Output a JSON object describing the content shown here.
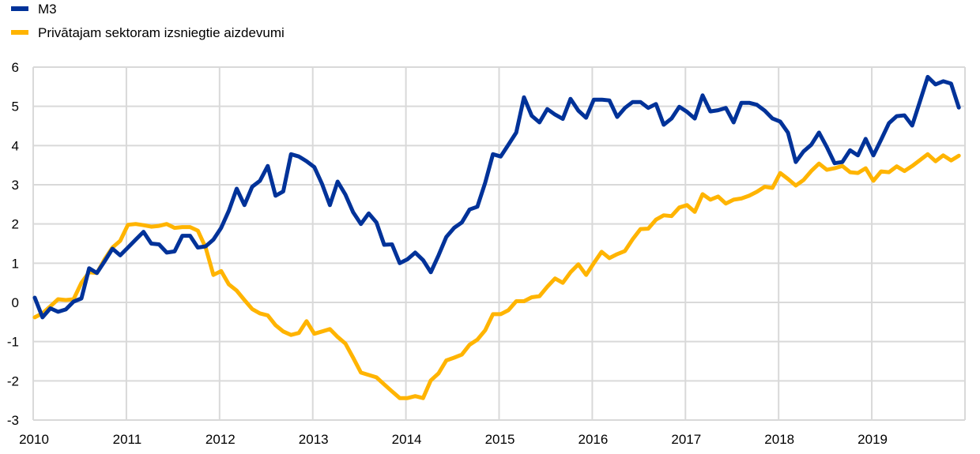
{
  "chart_data": {
    "type": "line",
    "title": "",
    "xlabel": "",
    "ylabel": "",
    "ylim": [
      -3,
      6
    ],
    "yticks": [
      "6",
      "5",
      "4",
      "3",
      "2",
      "1",
      "0",
      "-1",
      "-2",
      "-3"
    ],
    "xticks": [
      "2010",
      "2011",
      "2012",
      "2013",
      "2014",
      "2015",
      "2016",
      "2017",
      "2018",
      "2019"
    ],
    "x_start": "2010-01",
    "x_frequency": "monthly",
    "grid": true,
    "legend_position": "top-left",
    "series": [
      {
        "name": "M3",
        "color": "#003299",
        "values": [
          0.12,
          -0.38,
          -0.15,
          -0.24,
          -0.18,
          0.02,
          0.1,
          0.87,
          0.75,
          1.05,
          1.37,
          1.2,
          1.4,
          1.6,
          1.8,
          1.5,
          1.48,
          1.27,
          1.3,
          1.7,
          1.7,
          1.4,
          1.43,
          1.6,
          1.9,
          2.34,
          2.9,
          2.48,
          2.95,
          3.1,
          3.48,
          2.72,
          2.83,
          3.78,
          3.72,
          3.6,
          3.45,
          3.02,
          2.48,
          3.08,
          2.75,
          2.3,
          2.0,
          2.27,
          2.04,
          1.47,
          1.48,
          1.0,
          1.1,
          1.27,
          1.08,
          0.77,
          1.2,
          1.67,
          1.9,
          2.04,
          2.37,
          2.44,
          3.05,
          3.78,
          3.72,
          4.02,
          4.33,
          5.23,
          4.76,
          4.59,
          4.93,
          4.79,
          4.68,
          5.19,
          4.89,
          4.71,
          5.17,
          5.17,
          5.15,
          4.73,
          4.96,
          5.11,
          5.11,
          4.96,
          5.06,
          4.53,
          4.69,
          4.99,
          4.86,
          4.69,
          5.28,
          4.87,
          4.9,
          4.96,
          4.59,
          5.09,
          5.09,
          5.04,
          4.89,
          4.69,
          4.61,
          4.33,
          3.58,
          3.85,
          4.02,
          4.33,
          3.96,
          3.55,
          3.58,
          3.88,
          3.75,
          4.17,
          3.75,
          4.15,
          4.57,
          4.75,
          4.77,
          4.51,
          5.13,
          5.75,
          5.56,
          5.64,
          5.58,
          4.97
        ]
      },
      {
        "name": "Privātajam sektoram izsniegtie aizdevumi",
        "color": "#FFB400",
        "values": [
          -0.38,
          -0.28,
          -0.1,
          0.08,
          0.06,
          0.08,
          0.5,
          0.77,
          0.75,
          1.1,
          1.4,
          1.57,
          1.98,
          2.0,
          1.97,
          1.93,
          1.95,
          2.0,
          1.9,
          1.92,
          1.92,
          1.83,
          1.4,
          0.7,
          0.8,
          0.46,
          0.3,
          0.06,
          -0.17,
          -0.28,
          -0.33,
          -0.58,
          -0.74,
          -0.83,
          -0.78,
          -0.48,
          -0.8,
          -0.74,
          -0.68,
          -0.88,
          -1.05,
          -1.41,
          -1.79,
          -1.85,
          -1.91,
          -2.09,
          -2.27,
          -2.44,
          -2.44,
          -2.39,
          -2.44,
          -1.99,
          -1.81,
          -1.48,
          -1.41,
          -1.33,
          -1.08,
          -0.95,
          -0.71,
          -0.3,
          -0.3,
          -0.2,
          0.03,
          0.03,
          0.13,
          0.16,
          0.4,
          0.61,
          0.5,
          0.77,
          0.97,
          0.7,
          1.0,
          1.29,
          1.13,
          1.23,
          1.31,
          1.61,
          1.87,
          1.88,
          2.11,
          2.22,
          2.2,
          2.42,
          2.48,
          2.31,
          2.76,
          2.62,
          2.7,
          2.52,
          2.62,
          2.65,
          2.72,
          2.82,
          2.95,
          2.92,
          3.3,
          3.15,
          2.98,
          3.12,
          3.35,
          3.54,
          3.38,
          3.42,
          3.48,
          3.32,
          3.3,
          3.42,
          3.1,
          3.34,
          3.32,
          3.47,
          3.35,
          3.48,
          3.63,
          3.78,
          3.6,
          3.75,
          3.62,
          3.74
        ]
      }
    ]
  }
}
